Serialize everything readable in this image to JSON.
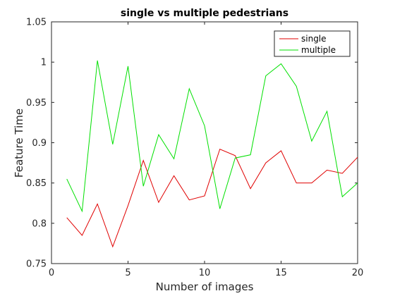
{
  "chart_data": {
    "type": "line",
    "title": "single vs multiple pedestrians",
    "xlabel": "Number of images",
    "ylabel": "Feature Time",
    "xlim": [
      0,
      20
    ],
    "ylim": [
      0.75,
      1.05
    ],
    "xticks": [
      0,
      5,
      10,
      15,
      20
    ],
    "yticks": [
      0.75,
      0.8,
      0.85,
      0.9,
      0.95,
      1,
      1.05
    ],
    "xtick_labels": [
      "0",
      "5",
      "10",
      "15",
      "20"
    ],
    "ytick_labels": [
      "0.75",
      "0.8",
      "0.85",
      "0.9",
      "0.95",
      "1",
      "1.05"
    ],
    "grid": false,
    "legend_position": "top-right",
    "x": [
      1,
      2,
      3,
      4,
      5,
      6,
      7,
      8,
      9,
      10,
      11,
      12,
      13,
      14,
      15,
      16,
      17,
      18,
      19,
      20
    ],
    "series": [
      {
        "name": "single",
        "color": "#e00000",
        "values": [
          0.807,
          0.785,
          0.824,
          0.771,
          0.822,
          0.878,
          0.826,
          0.859,
          0.829,
          0.834,
          0.892,
          0.884,
          0.843,
          0.875,
          0.89,
          0.85,
          0.85,
          0.866,
          0.862,
          0.882
        ]
      },
      {
        "name": "multiple",
        "color": "#00e000",
        "values": [
          0.855,
          0.815,
          1.002,
          0.898,
          0.995,
          0.846,
          0.91,
          0.88,
          0.967,
          0.921,
          0.818,
          0.881,
          0.885,
          0.983,
          0.998,
          0.97,
          0.902,
          0.939,
          0.833,
          0.85
        ]
      }
    ]
  }
}
